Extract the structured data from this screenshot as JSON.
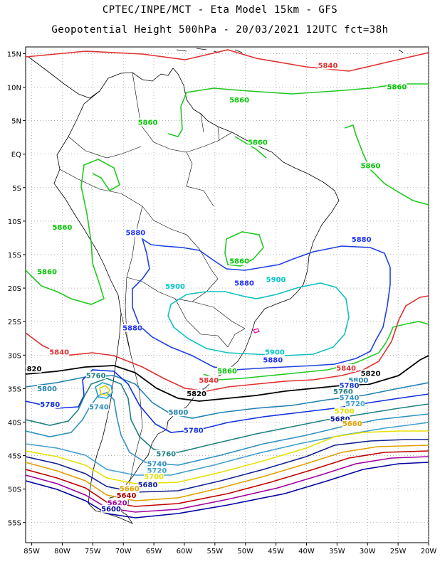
{
  "title": {
    "line1": "CPTEC/INPE/MCT -  Eta Model 15km - GFS",
    "line2": "Geopotential Height 500hPa - 20/03/2021 12UTC fct=38h"
  },
  "axes": {
    "lat_labels": [
      "15N",
      "10N",
      "5N",
      "EQ",
      "5S",
      "10S",
      "15S",
      "20S",
      "25S",
      "30S",
      "35S",
      "40S",
      "45S",
      "50S",
      "55S"
    ],
    "lon_labels": [
      "85W",
      "80W",
      "75W",
      "70W",
      "65W",
      "60W",
      "55W",
      "50W",
      "45W",
      "40W",
      "35W",
      "30W",
      "25W",
      "20W"
    ],
    "lat_range": [
      -58,
      16
    ],
    "lon_range": [
      -86,
      -20
    ],
    "grid": true
  },
  "colors": {
    "5940": "#ff0000",
    "5880": "#2030ff",
    "5900": "#00c8c8",
    "5860": "#00c800",
    "5840": "#e03030",
    "5820": "#000000",
    "5800": "#2080b0",
    "5780": "#1030e0",
    "5760": "#208080",
    "5740": "#3090c0",
    "5720": "#40a0d0",
    "5700": "#e0e000",
    "5680": "#1020a0",
    "5660": "#e0a000",
    "5640": "#b00000",
    "5620": "#a000a0",
    "5600": "#0000a0"
  },
  "contour_labels": [
    {
      "text": "5840",
      "lon": -36.5,
      "lat": 13.0,
      "key": "5840"
    },
    {
      "text": "5860",
      "lon": -25.2,
      "lat": 9.8,
      "key": "5860"
    },
    {
      "text": "5860",
      "lon": -51.0,
      "lat": 7.8,
      "key": "5860"
    },
    {
      "text": "5860",
      "lon": -66.0,
      "lat": 4.5,
      "key": "5860"
    },
    {
      "text": "5860",
      "lon": -48.0,
      "lat": 1.5,
      "key": "5860"
    },
    {
      "text": "5860",
      "lon": -29.5,
      "lat": -2.0,
      "key": "5860"
    },
    {
      "text": "5860",
      "lon": -80.0,
      "lat": -11.2,
      "key": "5860"
    },
    {
      "text": "5860",
      "lon": -82.5,
      "lat": -17.8,
      "key": "5860"
    },
    {
      "text": "5860",
      "lon": -51.0,
      "lat": -16.2,
      "key": "5860"
    },
    {
      "text": "5860",
      "lon": -53.0,
      "lat": -32.6,
      "key": "5860"
    },
    {
      "text": "5880",
      "lon": -68.0,
      "lat": -12.0,
      "key": "5880"
    },
    {
      "text": "5880",
      "lon": -31.0,
      "lat": -13.0,
      "key": "5880"
    },
    {
      "text": "5880",
      "lon": -50.2,
      "lat": -19.5,
      "key": "5880"
    },
    {
      "text": "5880",
      "lon": -68.5,
      "lat": -26.2,
      "key": "5880"
    },
    {
      "text": "5880",
      "lon": -45.5,
      "lat": -31.0,
      "key": "5880"
    },
    {
      "text": "5900",
      "lon": -61.5,
      "lat": -20.0,
      "key": "5900"
    },
    {
      "text": "5900",
      "lon": -45.0,
      "lat": -19.0,
      "key": "5900"
    },
    {
      "text": "5900",
      "lon": -45.2,
      "lat": -29.8,
      "key": "5900"
    },
    {
      "text": "5840",
      "lon": -80.5,
      "lat": -29.8,
      "key": "5840"
    },
    {
      "text": "5840",
      "lon": -56.0,
      "lat": -34.0,
      "key": "5840"
    },
    {
      "text": "5840",
      "lon": -33.5,
      "lat": -32.2,
      "key": "5840"
    },
    {
      "text": "5820",
      "lon": -85.0,
      "lat": -32.3,
      "key": "5820"
    },
    {
      "text": "5820",
      "lon": -58.0,
      "lat": -36.0,
      "key": "5820"
    },
    {
      "text": "5820",
      "lon": -29.5,
      "lat": -33.0,
      "key": "5820"
    },
    {
      "text": "5800",
      "lon": -31.5,
      "lat": -34.0,
      "key": "5800"
    },
    {
      "text": "5780",
      "lon": -33.0,
      "lat": -34.8,
      "key": "5780"
    },
    {
      "text": "5760",
      "lon": -34.0,
      "lat": -35.7,
      "key": "5760"
    },
    {
      "text": "5740",
      "lon": -33.0,
      "lat": -36.6,
      "key": "5740"
    },
    {
      "text": "5720",
      "lon": -32.0,
      "lat": -37.5,
      "key": "5720"
    },
    {
      "text": "5700",
      "lon": -33.8,
      "lat": -38.6,
      "key": "5700"
    },
    {
      "text": "5680",
      "lon": -34.5,
      "lat": -39.8,
      "key": "5680"
    },
    {
      "text": "5660",
      "lon": -32.5,
      "lat": -40.5,
      "key": "5660"
    },
    {
      "text": "5760",
      "lon": -74.5,
      "lat": -33.3,
      "key": "5760"
    },
    {
      "text": "5800",
      "lon": -82.5,
      "lat": -35.3,
      "key": "5800"
    },
    {
      "text": "5780",
      "lon": -82.0,
      "lat": -37.6,
      "key": "5780"
    },
    {
      "text": "5740",
      "lon": -74.0,
      "lat": -38.0,
      "key": "5740"
    },
    {
      "text": "5800",
      "lon": -61.0,
      "lat": -38.8,
      "key": "5800"
    },
    {
      "text": "5780",
      "lon": -58.5,
      "lat": -41.5,
      "key": "5780"
    },
    {
      "text": "5760",
      "lon": -63.0,
      "lat": -45.0,
      "key": "5760"
    },
    {
      "text": "5740",
      "lon": -64.5,
      "lat": -46.5,
      "key": "5740"
    },
    {
      "text": "5720",
      "lon": -64.5,
      "lat": -47.5,
      "key": "5720"
    },
    {
      "text": "5700",
      "lon": -65.0,
      "lat": -48.4,
      "key": "5700"
    },
    {
      "text": "5680",
      "lon": -66.0,
      "lat": -49.6,
      "key": "5680"
    },
    {
      "text": "5660",
      "lon": -69.0,
      "lat": -50.2,
      "key": "5660"
    },
    {
      "text": "5640",
      "lon": -69.5,
      "lat": -51.2,
      "key": "5640"
    },
    {
      "text": "5620",
      "lon": -71.0,
      "lat": -52.3,
      "key": "5620"
    },
    {
      "text": "5600",
      "lon": -72.0,
      "lat": -53.2,
      "key": "5600"
    }
  ]
}
